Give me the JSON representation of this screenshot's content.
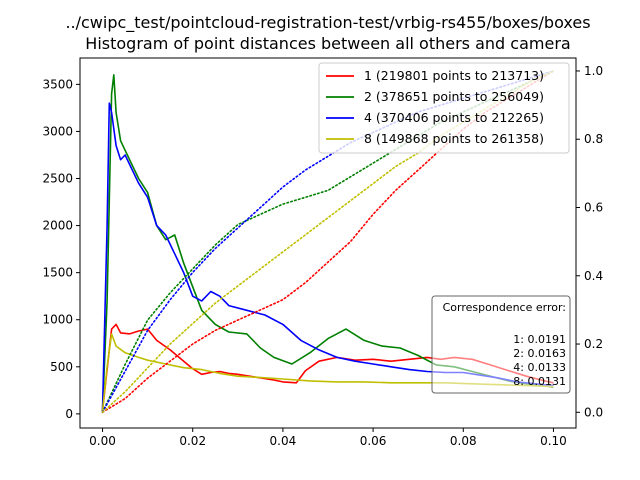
{
  "chart_data": {
    "type": "line",
    "title_line1": "../cwipc_test/pointcloud-registration-test/vrbig-rs455/boxes/boxes",
    "title_line2": "Histogram of point distances between all others and camera",
    "x_ticks": [
      "0.00",
      "0.02",
      "0.04",
      "0.06",
      "0.08",
      "0.10"
    ],
    "y_left_ticks": [
      "0",
      "500",
      "1000",
      "1500",
      "2000",
      "2500",
      "3000",
      "3500"
    ],
    "y_right_ticks": [
      "0.0",
      "0.2",
      "0.4",
      "0.6",
      "0.8",
      "1.0"
    ],
    "xlim": [
      -0.005,
      0.105
    ],
    "ylim_left": [
      -150,
      3780
    ],
    "ylim_right": [
      -0.046,
      1.038
    ],
    "grid": false,
    "legend_position": "top-right",
    "series": [
      {
        "name": "1 (219801 points to 213713)",
        "color": "#ff0000",
        "histogram": [
          [
            0.0,
            30
          ],
          [
            0.002,
            900
          ],
          [
            0.003,
            950
          ],
          [
            0.004,
            860
          ],
          [
            0.006,
            850
          ],
          [
            0.008,
            880
          ],
          [
            0.01,
            900
          ],
          [
            0.012,
            780
          ],
          [
            0.015,
            680
          ],
          [
            0.018,
            560
          ],
          [
            0.02,
            480
          ],
          [
            0.022,
            420
          ],
          [
            0.024,
            440
          ],
          [
            0.026,
            450
          ],
          [
            0.028,
            430
          ],
          [
            0.03,
            420
          ],
          [
            0.034,
            390
          ],
          [
            0.038,
            360
          ],
          [
            0.04,
            340
          ],
          [
            0.043,
            330
          ],
          [
            0.045,
            460
          ],
          [
            0.048,
            560
          ],
          [
            0.052,
            600
          ],
          [
            0.056,
            570
          ],
          [
            0.06,
            580
          ],
          [
            0.064,
            560
          ],
          [
            0.068,
            580
          ],
          [
            0.072,
            600
          ],
          [
            0.075,
            580
          ],
          [
            0.078,
            600
          ],
          [
            0.082,
            580
          ],
          [
            0.086,
            520
          ],
          [
            0.09,
            460
          ],
          [
            0.094,
            400
          ],
          [
            0.098,
            350
          ],
          [
            0.1,
            330
          ]
        ],
        "cumulative": [
          [
            0.0,
            0.0
          ],
          [
            0.005,
            0.04
          ],
          [
            0.01,
            0.1
          ],
          [
            0.015,
            0.15
          ],
          [
            0.02,
            0.2
          ],
          [
            0.025,
            0.24
          ],
          [
            0.03,
            0.27
          ],
          [
            0.035,
            0.3
          ],
          [
            0.04,
            0.33
          ],
          [
            0.045,
            0.38
          ],
          [
            0.05,
            0.44
          ],
          [
            0.055,
            0.5
          ],
          [
            0.06,
            0.58
          ],
          [
            0.065,
            0.65
          ],
          [
            0.07,
            0.71
          ],
          [
            0.075,
            0.77
          ],
          [
            0.08,
            0.83
          ],
          [
            0.085,
            0.88
          ],
          [
            0.09,
            0.92
          ],
          [
            0.095,
            0.96
          ],
          [
            0.1,
            1.0
          ]
        ]
      },
      {
        "name": "2 (378651 points to 256049)",
        "color": "#008000",
        "histogram": [
          [
            0.0,
            30
          ],
          [
            0.001,
            1200
          ],
          [
            0.002,
            3400
          ],
          [
            0.0025,
            3600
          ],
          [
            0.003,
            3200
          ],
          [
            0.004,
            2900
          ],
          [
            0.006,
            2700
          ],
          [
            0.008,
            2500
          ],
          [
            0.01,
            2350
          ],
          [
            0.012,
            2000
          ],
          [
            0.014,
            1850
          ],
          [
            0.016,
            1900
          ],
          [
            0.018,
            1600
          ],
          [
            0.02,
            1350
          ],
          [
            0.022,
            1100
          ],
          [
            0.025,
            950
          ],
          [
            0.028,
            870
          ],
          [
            0.032,
            850
          ],
          [
            0.035,
            700
          ],
          [
            0.038,
            600
          ],
          [
            0.042,
            530
          ],
          [
            0.046,
            650
          ],
          [
            0.05,
            800
          ],
          [
            0.054,
            900
          ],
          [
            0.058,
            780
          ],
          [
            0.062,
            720
          ],
          [
            0.066,
            700
          ],
          [
            0.07,
            620
          ],
          [
            0.074,
            520
          ],
          [
            0.078,
            500
          ],
          [
            0.082,
            450
          ],
          [
            0.086,
            400
          ],
          [
            0.09,
            350
          ],
          [
            0.094,
            320
          ],
          [
            0.098,
            300
          ],
          [
            0.1,
            280
          ]
        ],
        "cumulative": [
          [
            0.0,
            0.0
          ],
          [
            0.005,
            0.14
          ],
          [
            0.01,
            0.27
          ],
          [
            0.015,
            0.35
          ],
          [
            0.02,
            0.42
          ],
          [
            0.025,
            0.49
          ],
          [
            0.03,
            0.55
          ],
          [
            0.035,
            0.58
          ],
          [
            0.04,
            0.61
          ],
          [
            0.045,
            0.63
          ],
          [
            0.05,
            0.65
          ],
          [
            0.055,
            0.69
          ],
          [
            0.06,
            0.73
          ],
          [
            0.065,
            0.77
          ],
          [
            0.07,
            0.81
          ],
          [
            0.075,
            0.85
          ],
          [
            0.08,
            0.88
          ],
          [
            0.085,
            0.91
          ],
          [
            0.09,
            0.94
          ],
          [
            0.095,
            0.97
          ],
          [
            0.1,
            1.0
          ]
        ]
      },
      {
        "name": "4 (370406 points to 212265)",
        "color": "#0000ff",
        "histogram": [
          [
            0.0,
            30
          ],
          [
            0.001,
            2000
          ],
          [
            0.0015,
            3300
          ],
          [
            0.002,
            3200
          ],
          [
            0.003,
            2850
          ],
          [
            0.004,
            2700
          ],
          [
            0.005,
            2750
          ],
          [
            0.006,
            2650
          ],
          [
            0.008,
            2450
          ],
          [
            0.01,
            2300
          ],
          [
            0.012,
            2000
          ],
          [
            0.014,
            1900
          ],
          [
            0.016,
            1700
          ],
          [
            0.018,
            1500
          ],
          [
            0.02,
            1250
          ],
          [
            0.022,
            1200
          ],
          [
            0.024,
            1300
          ],
          [
            0.026,
            1250
          ],
          [
            0.028,
            1150
          ],
          [
            0.032,
            1100
          ],
          [
            0.036,
            1050
          ],
          [
            0.04,
            950
          ],
          [
            0.044,
            780
          ],
          [
            0.048,
            680
          ],
          [
            0.052,
            600
          ],
          [
            0.056,
            560
          ],
          [
            0.06,
            530
          ],
          [
            0.064,
            500
          ],
          [
            0.068,
            470
          ],
          [
            0.072,
            450
          ],
          [
            0.076,
            440
          ],
          [
            0.08,
            440
          ],
          [
            0.084,
            410
          ],
          [
            0.088,
            380
          ],
          [
            0.092,
            340
          ],
          [
            0.096,
            320
          ],
          [
            0.1,
            300
          ]
        ],
        "cumulative": [
          [
            0.0,
            0.0
          ],
          [
            0.005,
            0.12
          ],
          [
            0.01,
            0.24
          ],
          [
            0.015,
            0.33
          ],
          [
            0.02,
            0.41
          ],
          [
            0.025,
            0.48
          ],
          [
            0.03,
            0.54
          ],
          [
            0.035,
            0.6
          ],
          [
            0.04,
            0.66
          ],
          [
            0.045,
            0.71
          ],
          [
            0.05,
            0.75
          ],
          [
            0.055,
            0.79
          ],
          [
            0.06,
            0.82
          ],
          [
            0.065,
            0.85
          ],
          [
            0.07,
            0.88
          ],
          [
            0.075,
            0.9
          ],
          [
            0.08,
            0.92
          ],
          [
            0.085,
            0.94
          ],
          [
            0.09,
            0.96
          ],
          [
            0.095,
            0.98
          ],
          [
            0.1,
            1.0
          ]
        ]
      },
      {
        "name": "8 (149868 points to 261358)",
        "color": "#bfbf00",
        "histogram": [
          [
            0.0,
            30
          ],
          [
            0.001,
            500
          ],
          [
            0.002,
            850
          ],
          [
            0.003,
            720
          ],
          [
            0.005,
            650
          ],
          [
            0.008,
            600
          ],
          [
            0.01,
            570
          ],
          [
            0.014,
            530
          ],
          [
            0.018,
            490
          ],
          [
            0.022,
            470
          ],
          [
            0.026,
            430
          ],
          [
            0.03,
            400
          ],
          [
            0.034,
            390
          ],
          [
            0.04,
            370
          ],
          [
            0.046,
            350
          ],
          [
            0.052,
            340
          ],
          [
            0.058,
            340
          ],
          [
            0.064,
            330
          ],
          [
            0.07,
            330
          ],
          [
            0.076,
            330
          ],
          [
            0.082,
            320
          ],
          [
            0.088,
            310
          ],
          [
            0.094,
            300
          ],
          [
            0.1,
            290
          ]
        ],
        "cumulative": [
          [
            0.0,
            0.0
          ],
          [
            0.005,
            0.06
          ],
          [
            0.01,
            0.13
          ],
          [
            0.015,
            0.2
          ],
          [
            0.02,
            0.26
          ],
          [
            0.025,
            0.32
          ],
          [
            0.03,
            0.37
          ],
          [
            0.035,
            0.42
          ],
          [
            0.04,
            0.47
          ],
          [
            0.045,
            0.52
          ],
          [
            0.05,
            0.57
          ],
          [
            0.055,
            0.62
          ],
          [
            0.06,
            0.67
          ],
          [
            0.065,
            0.72
          ],
          [
            0.07,
            0.76
          ],
          [
            0.075,
            0.81
          ],
          [
            0.08,
            0.85
          ],
          [
            0.085,
            0.89
          ],
          [
            0.09,
            0.93
          ],
          [
            0.095,
            0.97
          ],
          [
            0.1,
            1.0
          ]
        ]
      }
    ],
    "annotation": {
      "heading": "Correspondence error:",
      "lines": [
        "1: 0.0191",
        "2: 0.0163",
        "4: 0.0133",
        "8: 0.0131"
      ]
    }
  }
}
